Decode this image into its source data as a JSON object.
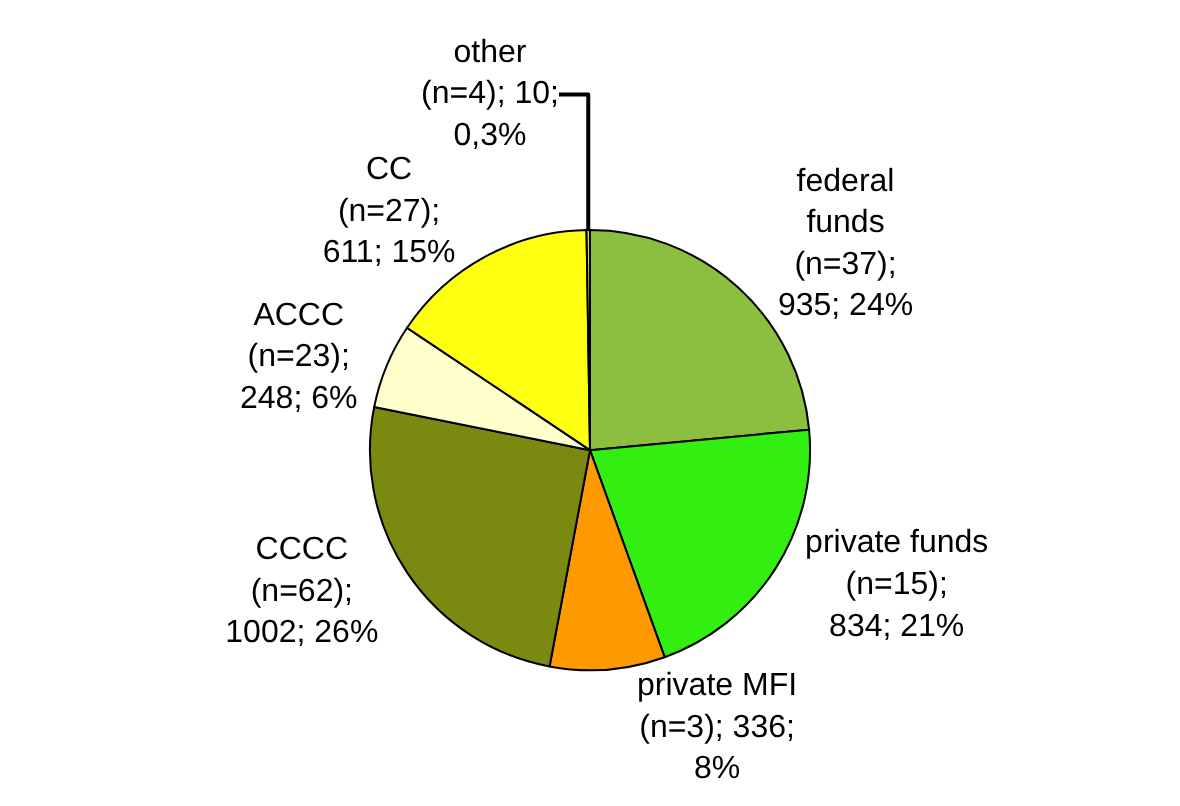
{
  "chart_data": {
    "type": "pie",
    "categories": [
      "federal\nfunds",
      "private funds",
      "private MFI",
      "CCCC",
      "ACCC",
      "CC",
      "other"
    ],
    "values": [
      935,
      834,
      336,
      1002,
      248,
      611,
      10
    ],
    "value_labels": [
      "(n=37);\n935; 24%",
      "(n=15);\n834; 21%",
      "(n=3); 336;\n8%",
      "(n=62);\n1002; 26%",
      "(n=23);\n248; 6%",
      "(n=27);\n611; 15%",
      "(n=4); 10;\n0,3%"
    ],
    "colors": [
      "#8cbf3f",
      "#33ee11",
      "#ff9900",
      "#7a8a10",
      "#ffffcc",
      "#ffff11",
      "#dddd00"
    ],
    "legend": false
  }
}
